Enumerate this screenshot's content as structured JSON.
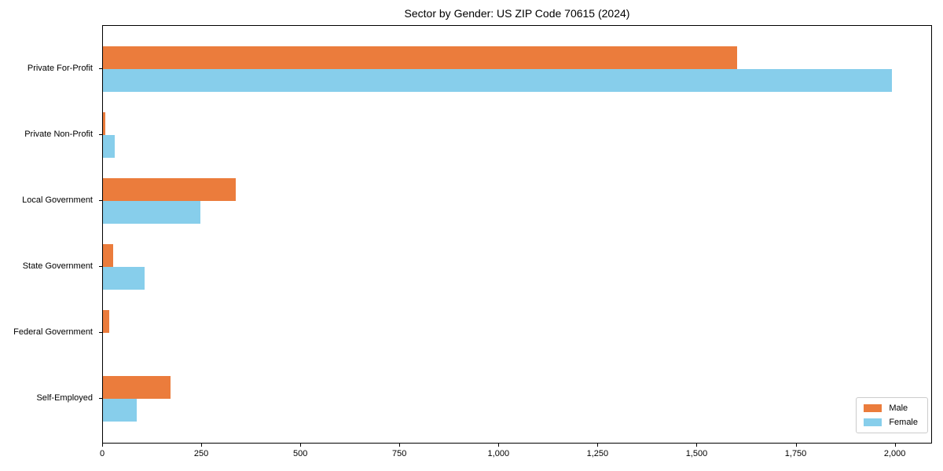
{
  "chart_data": {
    "type": "bar",
    "orientation": "horizontal",
    "title": "Sector by Gender: US ZIP Code 70615 (2024)",
    "xlabel": "",
    "ylabel": "",
    "categories": [
      "Private For-Profit",
      "Private Non-Profit",
      "Local Government",
      "State Government",
      "Federal Government",
      "Self-Employed"
    ],
    "series": [
      {
        "name": "Male",
        "color": "#EB7C3C",
        "values": [
          1600,
          5,
          335,
          25,
          15,
          170
        ]
      },
      {
        "name": "Female",
        "color": "#87CEEB",
        "values": [
          1990,
          30,
          245,
          105,
          0,
          85
        ]
      }
    ],
    "xlim": [
      0,
      2090
    ],
    "xticks": [
      0,
      250,
      500,
      750,
      1000,
      1250,
      1500,
      1750,
      2000
    ],
    "xtick_labels": [
      "0",
      "250",
      "500",
      "750",
      "1,000",
      "1,250",
      "1,500",
      "1,750",
      "2,000"
    ],
    "grid": false,
    "legend_position": "lower right",
    "colors": {
      "male": "#EB7C3C",
      "female": "#87CEEB",
      "spine": "#000000",
      "text": "#000000",
      "legend_border": "#cccccc",
      "background": "#ffffff"
    }
  }
}
